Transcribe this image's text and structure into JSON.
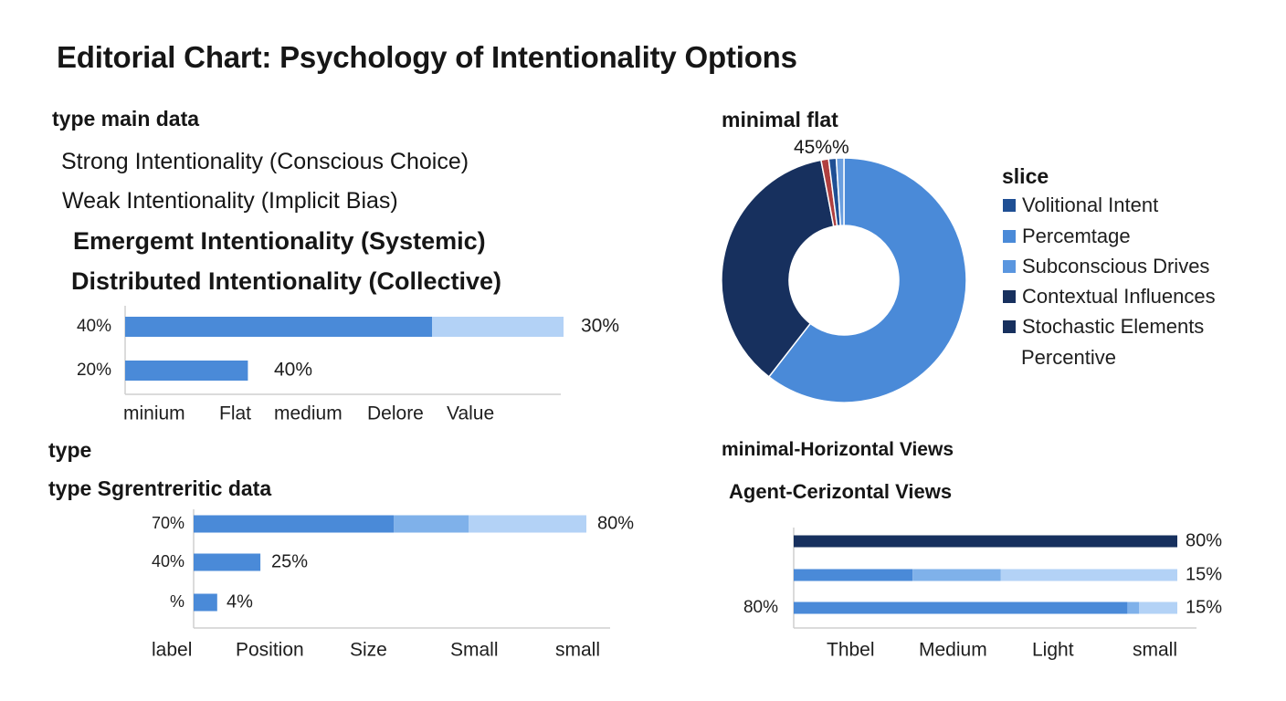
{
  "title": "Editorial Chart: Psychology of Intentionality Options",
  "colors": {
    "dark_navy": "#17305e",
    "mid_blue": "#4a8ad8",
    "light_blue": "#7fb1ea",
    "pale_blue": "#b3d2f6",
    "red": "#b04040",
    "axis": "#cfcfcf"
  },
  "panel_main": {
    "heading": "type main data",
    "items": [
      "Strong Intentionality (Conscious Choice)",
      "Weak Intentionality (Implicit Bias)",
      "Emergemt Intentionality (Systemic)",
      "Distributed Intentionality (Collective)"
    ]
  },
  "chart_data": [
    {
      "type": "bar",
      "orientation": "horizontal",
      "title": "type main data",
      "categories": [
        "40%",
        "20%"
      ],
      "series": [
        {
          "values": [
            70,
            28
          ]
        },
        {
          "values": [
            30,
            0
          ]
        }
      ],
      "value_labels": [
        "30%",
        "40%"
      ],
      "x_tick_labels": [
        "minium",
        "Flat",
        "medium",
        "Delore",
        "Value"
      ],
      "xlim": [
        0,
        100
      ],
      "grid": false
    },
    {
      "type": "pie",
      "title": "minimal flat",
      "legend_title": "slice",
      "donut": true,
      "slices": [
        {
          "label": "Volitional Intent",
          "value": 1,
          "color": "#1f4f94"
        },
        {
          "label": "Percemtage",
          "value": 60.5,
          "color": "#4a8ad8"
        },
        {
          "label": "Subconscious Drives",
          "value": 36.5,
          "color": "#17305e"
        },
        {
          "label": "Contextual Influences",
          "value": 1,
          "color": "#b04040"
        },
        {
          "label": "Stochastic Elements",
          "value": 1,
          "color": "#6a9edf"
        }
      ],
      "legend_entries": [
        {
          "label": "Volitional Intent",
          "color": "#1f4f94"
        },
        {
          "label": "Percemtage",
          "color": "#4a8ad8"
        },
        {
          "label": "Subconscious Drives",
          "color": "#5a96df"
        },
        {
          "label": "Contextual Influences",
          "color": "#17305e"
        },
        {
          "label": "Stochastic Elements",
          "color": "#17305e"
        },
        {
          "label": "Percentive",
          "color": ""
        }
      ],
      "slice_label": "45%",
      "slice_label_suffix": "%",
      "legend_position": "right"
    },
    {
      "type": "bar",
      "orientation": "horizontal",
      "title": "type Sgrentreritic data",
      "supertitle": "type",
      "categories": [
        "70%",
        "40%",
        "%"
      ],
      "series": [
        {
          "values": [
            51,
            17,
            6
          ]
        },
        {
          "values": [
            19,
            0,
            0
          ]
        },
        {
          "values": [
            30,
            0,
            0
          ]
        }
      ],
      "value_labels": [
        "80%",
        "25%",
        "4%"
      ],
      "x_tick_labels": [
        "label",
        "Position",
        "Size",
        "Small",
        "small"
      ],
      "xlim": [
        0,
        100
      ],
      "grid": false
    },
    {
      "type": "bar",
      "orientation": "horizontal",
      "title": "Agent-Cerizontal Views",
      "supertitle": "minimal-Horizontal Views",
      "categories": [
        "",
        "",
        "80%"
      ],
      "series": [
        {
          "values": [
            100,
            31,
            87
          ]
        },
        {
          "values": [
            0,
            23,
            3
          ]
        },
        {
          "values": [
            0,
            16,
            10
          ]
        },
        {
          "values": [
            0,
            30,
            0
          ]
        }
      ],
      "value_labels": [
        "80%",
        "15%",
        "15%"
      ],
      "x_tick_labels": [
        "Thbel",
        "Medium",
        "Light",
        "small"
      ],
      "xlim": [
        0,
        100
      ],
      "grid": false
    }
  ]
}
